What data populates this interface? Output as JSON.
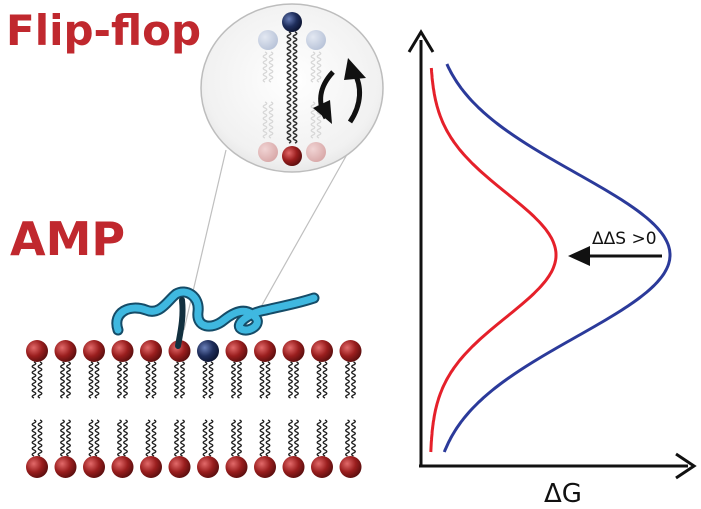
{
  "labels": {
    "flip_flop": "Flip-flop",
    "amp": "AMP",
    "delta_delta_s": "ΔΔS >0",
    "delta_g": "ΔG"
  },
  "colors": {
    "title_red": "#c0282e",
    "lipid_head_red": "#8a1a1a",
    "lipid_head_blue": "#1a2850",
    "peptide": "#3fb8e0",
    "curve_red": "#e5202a",
    "curve_blue": "#2b3a9a"
  },
  "membrane": {
    "lipid_count": 12,
    "blue_lipid_index": 6
  },
  "icons": {
    "rotation": "flip-rotation-arrows-icon",
    "lipid": "lipid-molecule-icon",
    "peptide": "amp-peptide-chain-icon"
  }
}
